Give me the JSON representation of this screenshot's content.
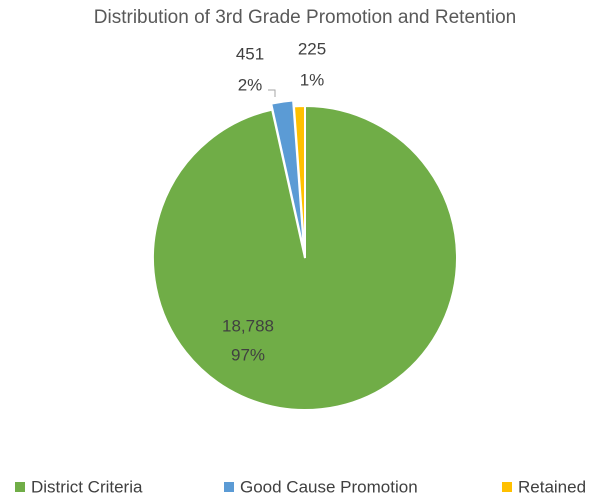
{
  "chart_data": {
    "type": "pie",
    "title": "Distribution of 3rd Grade Promotion and Retention",
    "categories": [
      "District Criteria",
      "Good Cause Promotion",
      "Retained"
    ],
    "values": [
      18788,
      451,
      225
    ],
    "value_labels": [
      "18,788",
      "451",
      "225"
    ],
    "percent_labels": [
      "97%",
      "2%",
      "1%"
    ],
    "colors": [
      "#70ad47",
      "#5b9bd5",
      "#ffc000"
    ],
    "legend": "bottom"
  }
}
